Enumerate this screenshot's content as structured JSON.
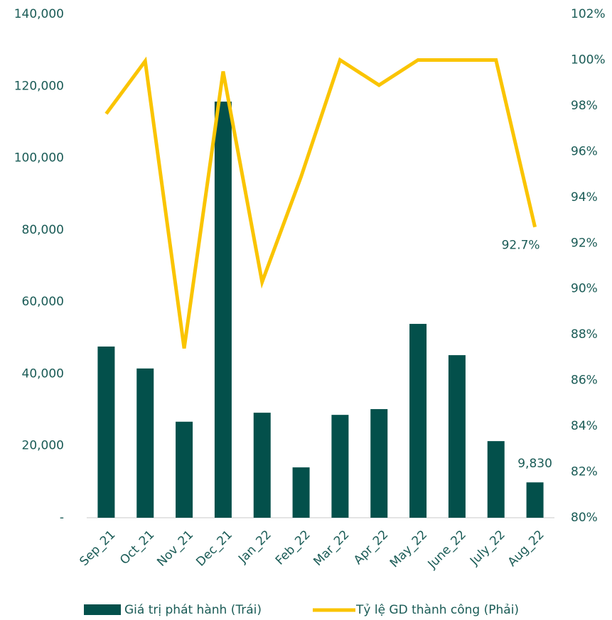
{
  "chart_data": {
    "type": "combo",
    "categories": [
      "Sep_21",
      "Oct_21",
      "Nov_21",
      "Dec_21",
      "Jan_22",
      "Feb_22",
      "Mar_22",
      "Apr_22",
      "May_22",
      "June_22",
      "July_22",
      "Aug_22"
    ],
    "series": [
      {
        "name": "Giá trị phát hành (Trái)",
        "type": "bar",
        "color": "#03504b",
        "values": [
          47600,
          41500,
          26700,
          115700,
          29200,
          14000,
          28600,
          30200,
          53900,
          45200,
          21300,
          9830
        ],
        "value_labels": [
          null,
          null,
          null,
          null,
          null,
          null,
          null,
          null,
          null,
          null,
          null,
          "9,830"
        ]
      },
      {
        "name": "Tỷ lệ GD thành công (Phải)",
        "type": "line",
        "axis": "y2",
        "color": "#fac400",
        "values": [
          97.65,
          99.95,
          87.4,
          99.5,
          90.3,
          94.9,
          100,
          98.9,
          100,
          100,
          100,
          92.7
        ],
        "value_labels": [
          null,
          null,
          null,
          null,
          null,
          null,
          null,
          null,
          null,
          null,
          null,
          "92.7%"
        ]
      }
    ],
    "ylim": [
      0,
      140000
    ],
    "yticks": [
      {
        "value": 0,
        "label": "-"
      },
      {
        "value": 20000,
        "label": "20,000"
      },
      {
        "value": 40000,
        "label": "40,000"
      },
      {
        "value": 60000,
        "label": "60,000"
      },
      {
        "value": 80000,
        "label": "80,000"
      },
      {
        "value": 100000,
        "label": "100,000"
      },
      {
        "value": 120000,
        "label": "120,000"
      },
      {
        "value": 140000,
        "label": "140,000"
      }
    ],
    "y2lim": [
      80,
      102
    ],
    "y2ticks": [
      {
        "value": 80,
        "label": "80%"
      },
      {
        "value": 82,
        "label": "82%"
      },
      {
        "value": 84,
        "label": "84%"
      },
      {
        "value": 86,
        "label": "86%"
      },
      {
        "value": 88,
        "label": "88%"
      },
      {
        "value": 90,
        "label": "90%"
      },
      {
        "value": 92,
        "label": "92%"
      },
      {
        "value": 94,
        "label": "94%"
      },
      {
        "value": 96,
        "label": "96%"
      },
      {
        "value": 98,
        "label": "98%"
      },
      {
        "value": 100,
        "label": "100%"
      },
      {
        "value": 102,
        "label": "102%"
      }
    ],
    "legend": "bottom"
  }
}
